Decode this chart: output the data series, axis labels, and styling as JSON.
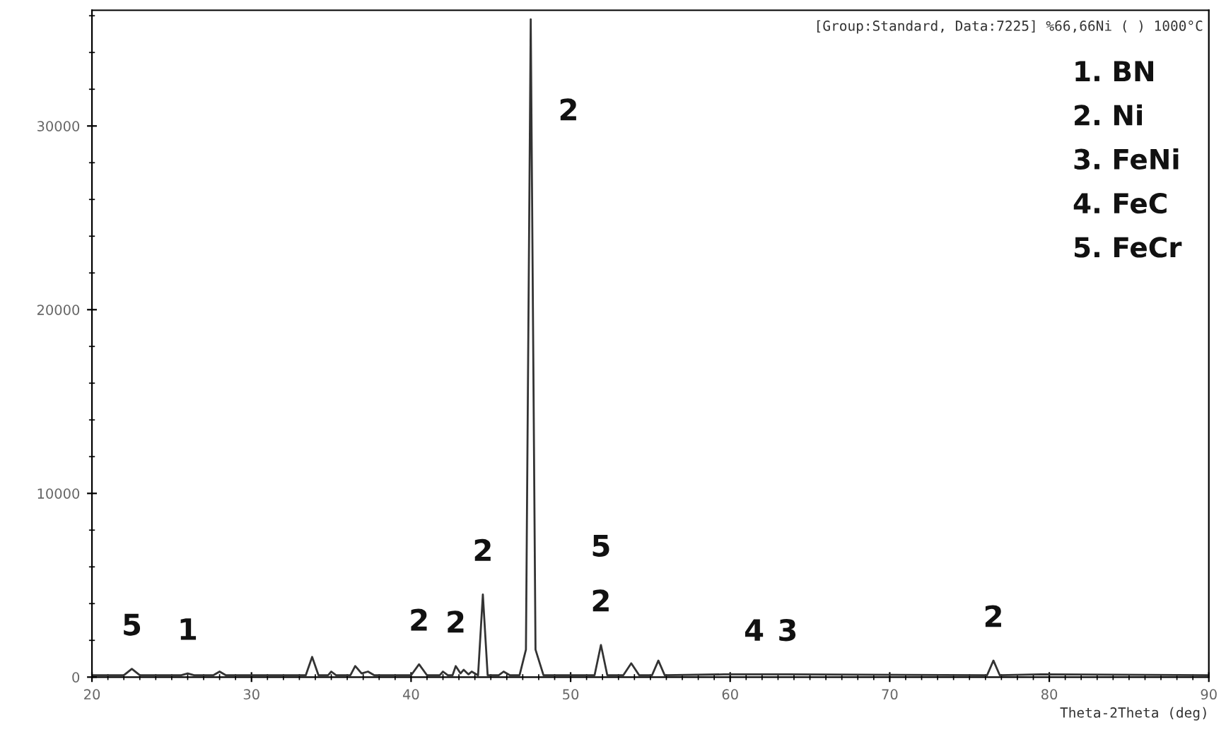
{
  "chart_data": {
    "type": "line",
    "title": "[Group:Standard, Data:7225] %66,66Ni ( ) 1000°C",
    "xlabel": "Theta-2Theta (deg)",
    "x": [
      20,
      22,
      22.5,
      23,
      25.6,
      26,
      26.4,
      27.6,
      28,
      28.4,
      33.4,
      33.8,
      34.2,
      34.8,
      35,
      35.3,
      36.2,
      36.5,
      36.9,
      37.3,
      37.7,
      40,
      40.5,
      41,
      41.8,
      42,
      42.3,
      42.6,
      42.8,
      43.1,
      43.3,
      43.6,
      43.8,
      44.2,
      44.5,
      44.8,
      45.5,
      45.8,
      46.2,
      46.8,
      47.2,
      47.5,
      47.8,
      48.3,
      51.5,
      51.9,
      52.3,
      53.3,
      53.8,
      54.3,
      55.1,
      55.5,
      55.9,
      59.6,
      61.5,
      63.6,
      76.1,
      76.5,
      76.9,
      79.5,
      90
    ],
    "series": [
      {
        "color": "#333333",
        "values": [
          100,
          100,
          450,
          100,
          100,
          200,
          100,
          100,
          300,
          100,
          100,
          1100,
          100,
          100,
          300,
          100,
          100,
          600,
          200,
          300,
          100,
          100,
          700,
          100,
          100,
          300,
          100,
          100,
          600,
          200,
          400,
          150,
          300,
          100,
          4500,
          100,
          100,
          300,
          100,
          100,
          1500,
          35800,
          1500,
          100,
          100,
          1750,
          100,
          100,
          750,
          100,
          100,
          900,
          100,
          150,
          150,
          150,
          100,
          900,
          100,
          150,
          100
        ]
      }
    ],
    "xlim": [
      20,
      90
    ],
    "ylim": [
      0,
      36300
    ],
    "xticks": [
      20,
      {
        "value": 21,
        "label": null
      },
      {
        "value": 22,
        "label": null
      },
      {
        "value": 23,
        "label": null
      },
      {
        "value": 24,
        "label": null
      },
      {
        "value": 25,
        "label": null
      },
      {
        "value": 26,
        "label": null
      },
      {
        "value": 27,
        "label": null
      },
      {
        "value": 28,
        "label": null
      },
      {
        "value": 29,
        "label": null
      },
      30,
      {
        "value": 31,
        "label": null
      },
      {
        "value": 32,
        "label": null
      },
      {
        "value": 33,
        "label": null
      },
      {
        "value": 34,
        "label": null
      },
      {
        "value": 35,
        "label": null
      },
      {
        "value": 36,
        "label": null
      },
      {
        "value": 37,
        "label": null
      },
      {
        "value": 38,
        "label": null
      },
      {
        "value": 39,
        "label": null
      },
      40,
      {
        "value": 41,
        "label": null
      },
      {
        "value": 42,
        "label": null
      },
      {
        "value": 43,
        "label": null
      },
      {
        "value": 44,
        "label": null
      },
      {
        "value": 45,
        "label": null
      },
      {
        "value": 46,
        "label": null
      },
      {
        "value": 47,
        "label": null
      },
      {
        "value": 48,
        "label": null
      },
      {
        "value": 49,
        "label": null
      },
      50,
      {
        "value": 51,
        "label": null
      },
      {
        "value": 52,
        "label": null
      },
      {
        "value": 53,
        "label": null
      },
      {
        "value": 54,
        "label": null
      },
      {
        "value": 55,
        "label": null
      },
      {
        "value": 56,
        "label": null
      },
      {
        "value": 57,
        "label": null
      },
      {
        "value": 58,
        "label": null
      },
      {
        "value": 59,
        "label": null
      },
      60,
      {
        "value": 61,
        "label": null
      },
      {
        "value": 62,
        "label": null
      },
      {
        "value": 63,
        "label": null
      },
      {
        "value": 64,
        "label": null
      },
      {
        "value": 65,
        "label": null
      },
      {
        "value": 66,
        "label": null
      },
      {
        "value": 67,
        "label": null
      },
      {
        "value": 68,
        "label": null
      },
      {
        "value": 69,
        "label": null
      },
      70,
      {
        "value": 71,
        "label": null
      },
      {
        "value": 72,
        "label": null
      },
      {
        "value": 73,
        "label": null
      },
      {
        "value": 74,
        "label": null
      },
      {
        "value": 75,
        "label": null
      },
      {
        "value": 76,
        "label": null
      },
      {
        "value": 77,
        "label": null
      },
      {
        "value": 78,
        "label": null
      },
      {
        "value": 79,
        "label": null
      },
      80,
      {
        "value": 81,
        "label": null
      },
      {
        "value": 82,
        "label": null
      },
      {
        "value": 83,
        "label": null
      },
      {
        "value": 84,
        "label": null
      },
      {
        "value": 85,
        "label": null
      },
      {
        "value": 86,
        "label": null
      },
      {
        "value": 87,
        "label": null
      },
      {
        "value": 88,
        "label": null
      },
      {
        "value": 89,
        "label": null
      },
      90
    ],
    "yticks": [
      0,
      {
        "value": 2000,
        "label": null
      },
      {
        "value": 4000,
        "label": null
      },
      {
        "value": 6000,
        "label": null
      },
      {
        "value": 8000,
        "label": null
      },
      10000,
      {
        "value": 12000,
        "label": null
      },
      {
        "value": 14000,
        "label": null
      },
      {
        "value": 16000,
        "label": null
      },
      {
        "value": 18000,
        "label": null
      },
      20000,
      {
        "value": 22000,
        "label": null
      },
      {
        "value": 24000,
        "label": null
      },
      {
        "value": 26000,
        "label": null
      },
      {
        "value": 28000,
        "label": null
      },
      30000,
      {
        "value": 32000,
        "label": null
      },
      {
        "value": 34000,
        "label": null
      },
      {
        "value": 36000,
        "label": null
      }
    ],
    "grid": false,
    "legend": false,
    "marker": "none",
    "line_style": "solid",
    "annotations": [
      {
        "text": "5",
        "x": 22.5,
        "y": 450
      },
      {
        "text": "1",
        "x": 26,
        "y": 200
      },
      {
        "text": "2",
        "x": 40.5,
        "y": 700
      },
      {
        "text": "2",
        "x": 42.8,
        "y": 600
      },
      {
        "text": "2",
        "x": 44.5,
        "y": 4500
      },
      {
        "text": "2",
        "x": 47.5,
        "y": 35800
      },
      {
        "text": "5",
        "x": 51.9,
        "y": 1750
      },
      {
        "text": "2",
        "x": 51.9,
        "y": 1750
      },
      {
        "text": "4",
        "x": 61.5,
        "y": 150
      },
      {
        "text": "3",
        "x": 63.6,
        "y": 150
      },
      {
        "text": "2",
        "x": 76.5,
        "y": 900
      },
      "1. BN",
      "2. Ni",
      "3. FeNi",
      "4. FeC",
      "5. FeCr"
    ]
  }
}
